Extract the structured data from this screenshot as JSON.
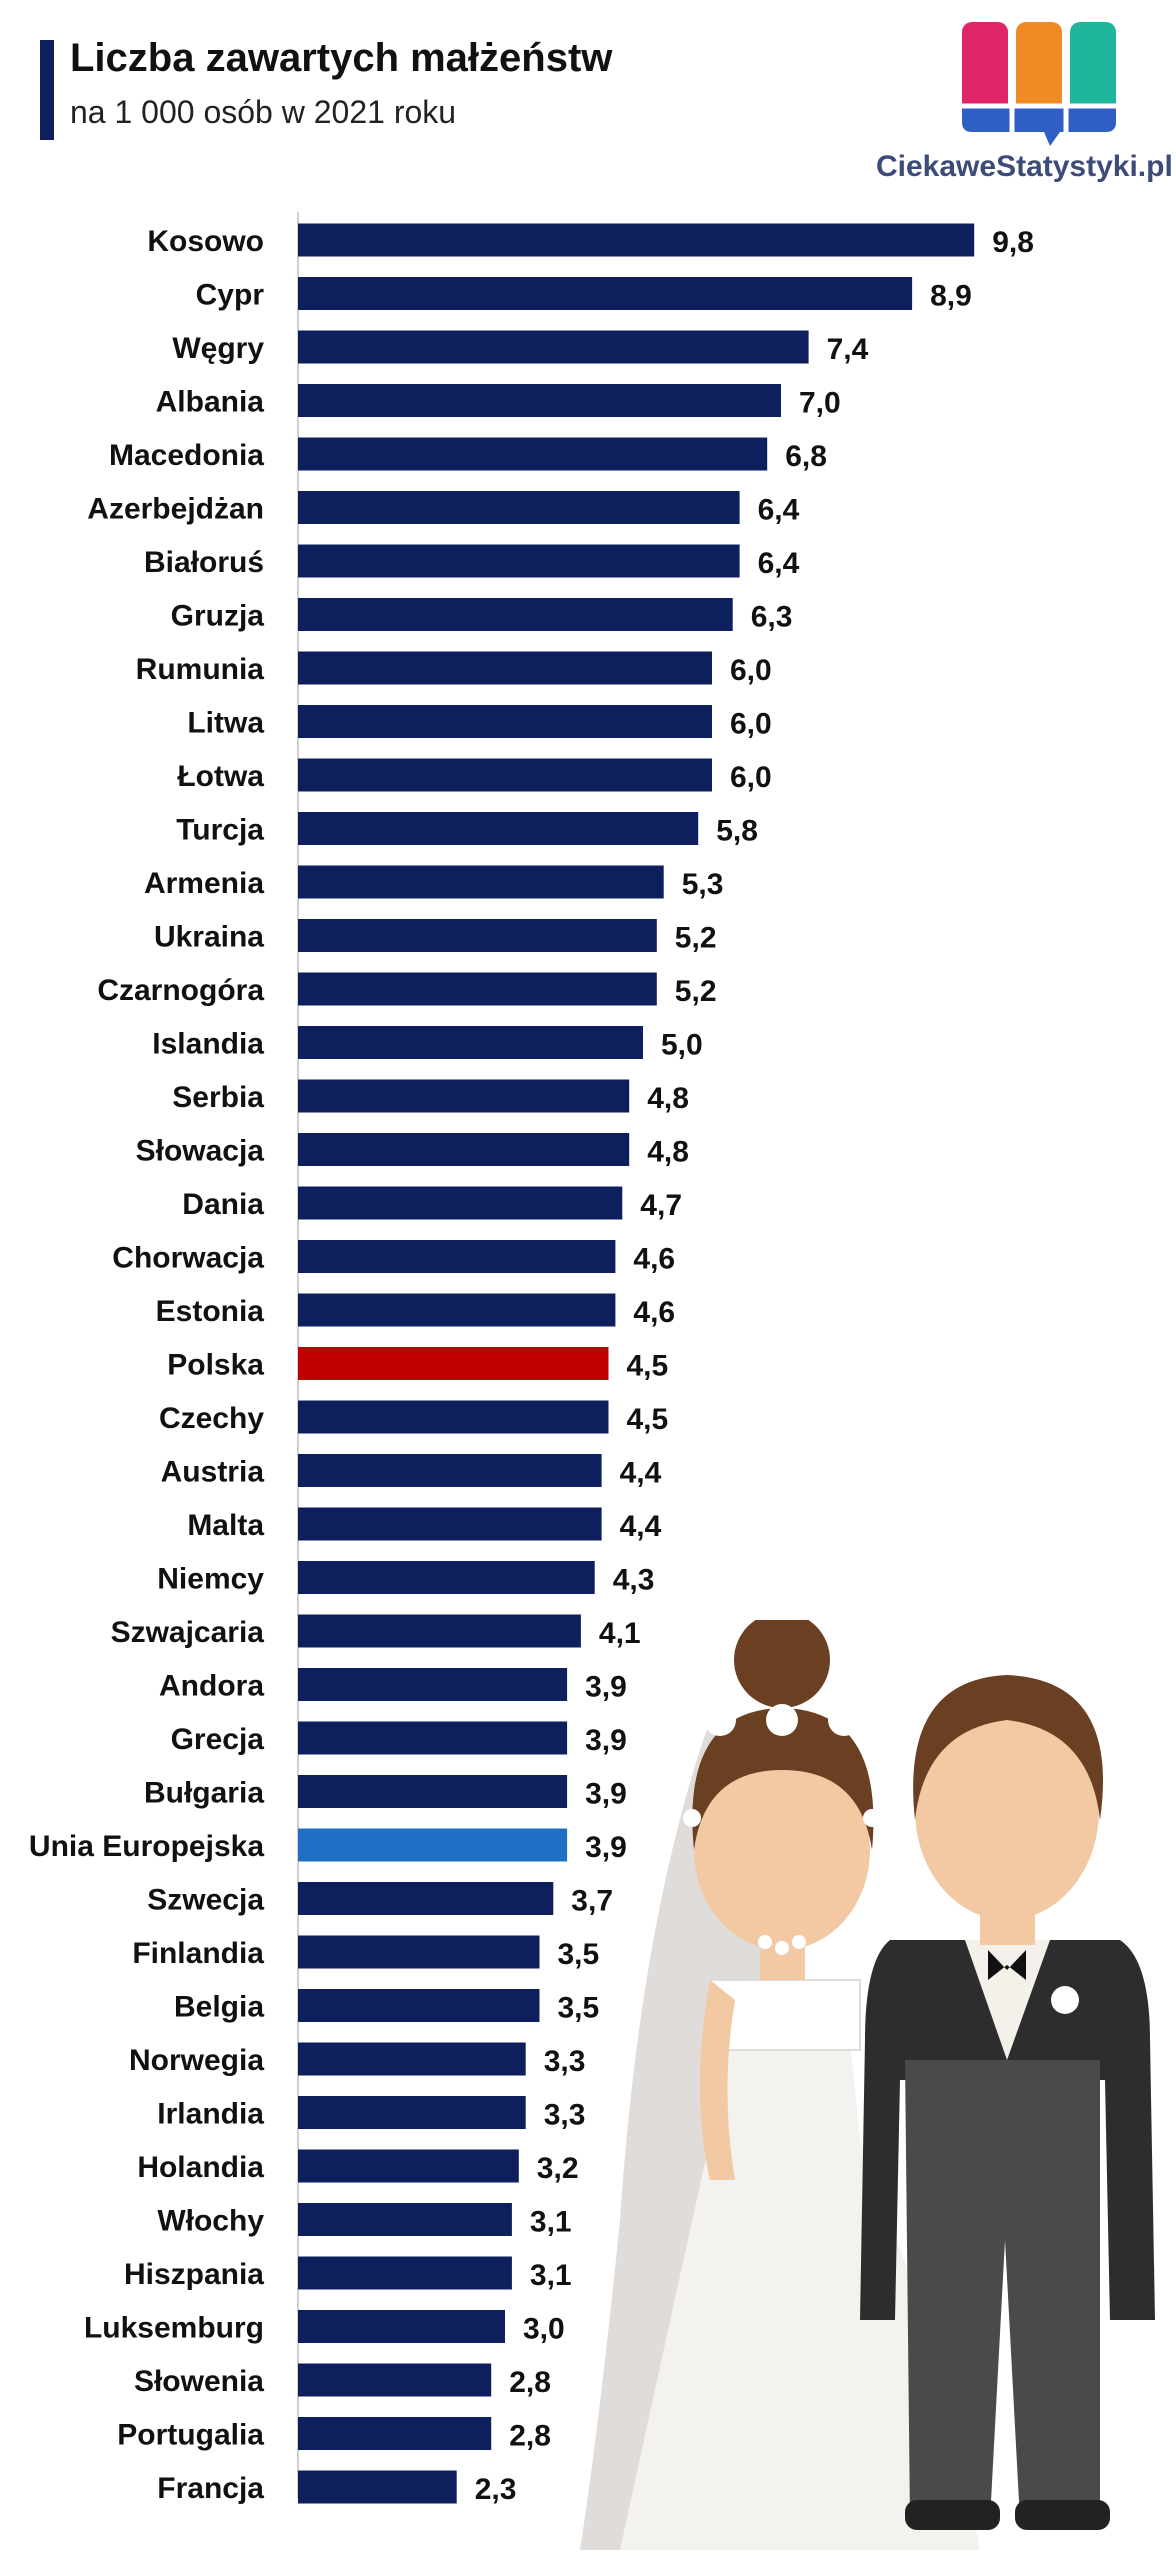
{
  "header": {
    "title": "Liczba zawartych małżeństw",
    "subtitle": "na 1 000 osób w 2021 roku"
  },
  "logo": {
    "text": "CiekaweStatystyki.pl",
    "icon": "bar-chart-logo-icon",
    "colors": [
      "#e0246a",
      "#f08a24",
      "#1fb59a",
      "#2f5fc4"
    ]
  },
  "illustration": {
    "icon": "bride-and-groom-illustration"
  },
  "chart_data": {
    "type": "bar",
    "orientation": "horizontal",
    "title": "Liczba zawartych małżeństw",
    "subtitle": "na 1 000 osób w 2021 roku",
    "xlim": [
      0,
      10
    ],
    "grid": false,
    "legend": "none",
    "default_color": "#0d1f5c",
    "highlight_colors": {
      "Polska": "#c00000",
      "Unia Europejska": "#1f6fc5"
    },
    "categories": [
      "Kosowo",
      "Cypr",
      "Węgry",
      "Albania",
      "Macedonia",
      "Azerbejdżan",
      "Białoruś",
      "Gruzja",
      "Rumunia",
      "Litwa",
      "Łotwa",
      "Turcja",
      "Armenia",
      "Ukraina",
      "Czarnogóra",
      "Islandia",
      "Serbia",
      "Słowacja",
      "Dania",
      "Chorwacja",
      "Estonia",
      "Polska",
      "Czechy",
      "Austria",
      "Malta",
      "Niemcy",
      "Szwajcaria",
      "Andora",
      "Grecja",
      "Bułgaria",
      "Unia Europejska",
      "Szwecja",
      "Finlandia",
      "Belgia",
      "Norwegia",
      "Irlandia",
      "Holandia",
      "Włochy",
      "Hiszpania",
      "Luksemburg",
      "Słowenia",
      "Portugalia",
      "Francja"
    ],
    "values": [
      9.8,
      8.9,
      7.4,
      7.0,
      6.8,
      6.4,
      6.4,
      6.3,
      6.0,
      6.0,
      6.0,
      5.8,
      5.3,
      5.2,
      5.2,
      5.0,
      4.8,
      4.8,
      4.7,
      4.6,
      4.6,
      4.5,
      4.5,
      4.4,
      4.4,
      4.3,
      4.1,
      3.9,
      3.9,
      3.9,
      3.9,
      3.7,
      3.5,
      3.5,
      3.3,
      3.3,
      3.2,
      3.1,
      3.1,
      3.0,
      2.8,
      2.8,
      2.3
    ],
    "value_labels": [
      "9,8",
      "8,9",
      "7,4",
      "7,0",
      "6,8",
      "6,4",
      "6,4",
      "6,3",
      "6,0",
      "6,0",
      "6,0",
      "5,8",
      "5,3",
      "5,2",
      "5,2",
      "5,0",
      "4,8",
      "4,8",
      "4,7",
      "4,6",
      "4,6",
      "4,5",
      "4,5",
      "4,4",
      "4,4",
      "4,3",
      "4,1",
      "3,9",
      "3,9",
      "3,9",
      "3,9",
      "3,7",
      "3,5",
      "3,5",
      "3,3",
      "3,3",
      "3,2",
      "3,1",
      "3,1",
      "3,0",
      "2,8",
      "2,8",
      "2,3"
    ]
  }
}
